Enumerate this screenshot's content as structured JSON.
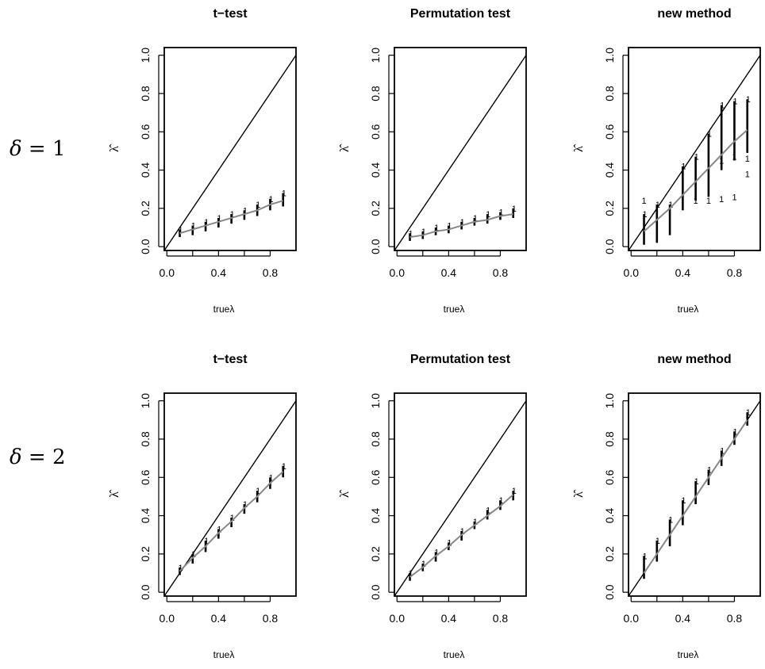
{
  "row_labels": [
    {
      "symbol": "δ",
      "eq": " = 1"
    },
    {
      "symbol": "δ",
      "eq": " = 2"
    }
  ],
  "axis_text": {
    "xlabel": "trueλ",
    "ylabel": "λ̂",
    "x_ticks": [
      "0.0",
      "0.4",
      "0.8"
    ],
    "y_ticks": [
      "0.0",
      "0.2",
      "0.4",
      "0.6",
      "0.8",
      "1.0"
    ]
  },
  "colors": {
    "identity_line": "#000000",
    "fit_line": "#888888",
    "points": "#000000",
    "frame": "#000000"
  },
  "chart_data": [
    {
      "type": "scatter",
      "title": "t−test",
      "row": 0,
      "col": 0,
      "xlabel": "trueλ",
      "ylabel": "λ̂",
      "xlim": [
        -0.02,
        1.0
      ],
      "ylim": [
        -0.02,
        1.04
      ],
      "x": [
        0.1,
        0.2,
        0.3,
        0.4,
        0.5,
        0.6,
        0.7,
        0.8,
        0.9
      ],
      "fit": [
        0.07,
        0.09,
        0.11,
        0.13,
        0.15,
        0.17,
        0.19,
        0.22,
        0.24
      ],
      "spread": [
        [
          0.05,
          0.09
        ],
        [
          0.06,
          0.11
        ],
        [
          0.08,
          0.13
        ],
        [
          0.1,
          0.15
        ],
        [
          0.12,
          0.17
        ],
        [
          0.14,
          0.19
        ],
        [
          0.16,
          0.22
        ],
        [
          0.19,
          0.25
        ],
        [
          0.21,
          0.28
        ]
      ],
      "outliers": []
    },
    {
      "type": "scatter",
      "title": "Permutation test",
      "row": 0,
      "col": 1,
      "xlabel": "trueλ",
      "ylabel": "λ̂",
      "xlim": [
        -0.02,
        1.0
      ],
      "ylim": [
        -0.02,
        1.04
      ],
      "x": [
        0.1,
        0.2,
        0.3,
        0.4,
        0.5,
        0.6,
        0.7,
        0.8,
        0.9
      ],
      "fit": [
        0.05,
        0.06,
        0.08,
        0.09,
        0.11,
        0.13,
        0.14,
        0.16,
        0.17
      ],
      "spread": [
        [
          0.03,
          0.07
        ],
        [
          0.04,
          0.08
        ],
        [
          0.06,
          0.1
        ],
        [
          0.07,
          0.11
        ],
        [
          0.09,
          0.13
        ],
        [
          0.11,
          0.15
        ],
        [
          0.12,
          0.17
        ],
        [
          0.14,
          0.18
        ],
        [
          0.15,
          0.2
        ]
      ],
      "outliers": []
    },
    {
      "type": "scatter",
      "title": "new method",
      "row": 0,
      "col": 2,
      "xlabel": "trueλ",
      "ylabel": "λ̂",
      "xlim": [
        -0.02,
        1.0
      ],
      "ylim": [
        -0.02,
        1.04
      ],
      "x": [
        0.1,
        0.2,
        0.3,
        0.4,
        0.5,
        0.6,
        0.7,
        0.8,
        0.9
      ],
      "fit": [
        0.08,
        0.14,
        0.2,
        0.27,
        0.34,
        0.41,
        0.48,
        0.55,
        0.61
      ],
      "spread": [
        [
          0.01,
          0.17
        ],
        [
          0.02,
          0.22
        ],
        [
          0.06,
          0.22
        ],
        [
          0.19,
          0.42
        ],
        [
          0.24,
          0.47
        ],
        [
          0.26,
          0.59
        ],
        [
          0.4,
          0.74
        ],
        [
          0.45,
          0.76
        ],
        [
          0.49,
          0.77
        ]
      ],
      "outliers": [
        [
          0.1,
          0.24
        ],
        [
          0.5,
          0.24
        ],
        [
          0.6,
          0.24
        ],
        [
          0.7,
          0.25
        ],
        [
          0.8,
          0.26
        ],
        [
          0.7,
          0.45
        ],
        [
          0.8,
          0.47
        ],
        [
          0.9,
          0.46
        ],
        [
          0.9,
          0.38
        ]
      ]
    },
    {
      "type": "scatter",
      "title": "t−test",
      "row": 1,
      "col": 0,
      "xlabel": "trueλ",
      "ylabel": "λ̂",
      "xlim": [
        -0.02,
        1.0
      ],
      "ylim": [
        -0.02,
        1.04
      ],
      "x": [
        0.1,
        0.2,
        0.3,
        0.4,
        0.5,
        0.6,
        0.7,
        0.8,
        0.9
      ],
      "fit": [
        0.11,
        0.18,
        0.24,
        0.31,
        0.37,
        0.44,
        0.5,
        0.57,
        0.63
      ],
      "spread": [
        [
          0.09,
          0.13
        ],
        [
          0.15,
          0.2
        ],
        [
          0.21,
          0.27
        ],
        [
          0.28,
          0.33
        ],
        [
          0.34,
          0.39
        ],
        [
          0.41,
          0.46
        ],
        [
          0.47,
          0.53
        ],
        [
          0.54,
          0.6
        ],
        [
          0.6,
          0.66
        ]
      ],
      "outliers": []
    },
    {
      "type": "scatter",
      "title": "Permutation test",
      "row": 1,
      "col": 1,
      "xlabel": "trueλ",
      "ylabel": "λ̂",
      "xlim": [
        -0.02,
        1.0
      ],
      "ylim": [
        -0.02,
        1.04
      ],
      "x": [
        0.1,
        0.2,
        0.3,
        0.4,
        0.5,
        0.6,
        0.7,
        0.8,
        0.9
      ],
      "fit": [
        0.08,
        0.13,
        0.19,
        0.24,
        0.3,
        0.35,
        0.4,
        0.45,
        0.51
      ],
      "spread": [
        [
          0.06,
          0.1
        ],
        [
          0.11,
          0.15
        ],
        [
          0.16,
          0.21
        ],
        [
          0.22,
          0.26
        ],
        [
          0.27,
          0.32
        ],
        [
          0.33,
          0.37
        ],
        [
          0.38,
          0.43
        ],
        [
          0.43,
          0.48
        ],
        [
          0.48,
          0.53
        ]
      ],
      "outliers": []
    },
    {
      "type": "scatter",
      "title": "new method",
      "row": 1,
      "col": 2,
      "xlabel": "trueλ",
      "ylabel": "λ̂",
      "xlim": [
        -0.02,
        1.0
      ],
      "ylim": [
        -0.02,
        1.04
      ],
      "x": [
        0.1,
        0.2,
        0.3,
        0.4,
        0.5,
        0.6,
        0.7,
        0.8,
        0.9
      ],
      "fit": [
        0.1,
        0.2,
        0.3,
        0.4,
        0.5,
        0.6,
        0.7,
        0.8,
        0.9
      ],
      "spread": [
        [
          0.07,
          0.19
        ],
        [
          0.16,
          0.27
        ],
        [
          0.24,
          0.38
        ],
        [
          0.35,
          0.48
        ],
        [
          0.46,
          0.58
        ],
        [
          0.56,
          0.64
        ],
        [
          0.66,
          0.74
        ],
        [
          0.77,
          0.84
        ],
        [
          0.87,
          0.94
        ]
      ],
      "outliers": []
    }
  ]
}
